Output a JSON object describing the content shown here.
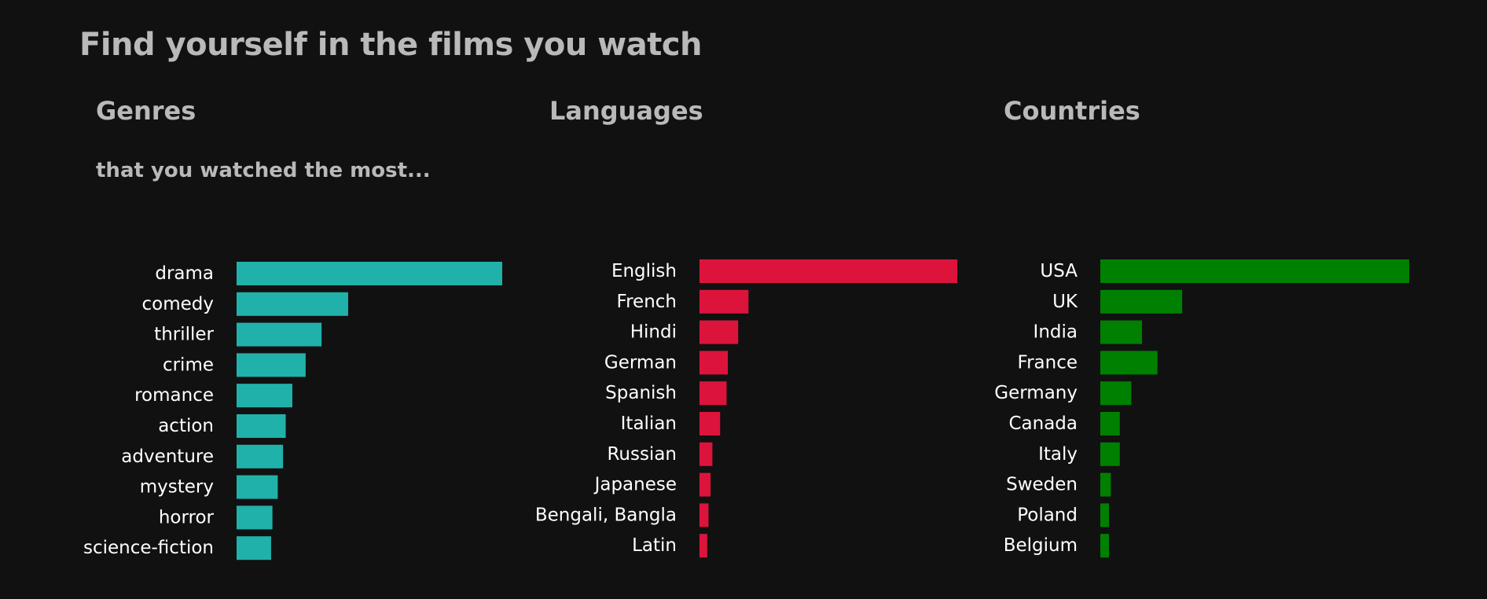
{
  "page": {
    "title": "Find yourself in the films you watch"
  },
  "sections": {
    "genres": {
      "heading": "Genres",
      "subtitle": "that you watched the most..."
    },
    "languages": {
      "heading": "Languages"
    },
    "countries": {
      "heading": "Countries"
    }
  },
  "chart_data": [
    {
      "type": "bar",
      "orientation": "horizontal",
      "categories": [
        "drama",
        "comedy",
        "thriller",
        "crime",
        "romance",
        "action",
        "adventure",
        "mystery",
        "horror",
        "science-fiction"
      ],
      "values": [
        100,
        42,
        32,
        26,
        21,
        18.5,
        17.5,
        15.5,
        13.5,
        13
      ],
      "xlim": [
        0,
        100
      ],
      "color": "#20b2aa",
      "axes": false,
      "grid": false
    },
    {
      "type": "bar",
      "orientation": "horizontal",
      "categories": [
        "English",
        "French",
        "Hindi",
        "German",
        "Spanish",
        "Italian",
        "Russian",
        "Japanese",
        "Bengali, Bangla",
        "Latin"
      ],
      "values": [
        100,
        19,
        15,
        11,
        10.5,
        8,
        5,
        4.3,
        3.5,
        3
      ],
      "xlim": [
        0,
        100
      ],
      "color": "#dc143c",
      "axes": false,
      "grid": false
    },
    {
      "type": "bar",
      "orientation": "horizontal",
      "categories": [
        "USA",
        "UK",
        "India",
        "France",
        "Germany",
        "Canada",
        "Italy",
        "Sweden",
        "Poland",
        "Belgium"
      ],
      "values": [
        100,
        26.5,
        13.5,
        18.5,
        10,
        6.3,
        6.3,
        3.4,
        2.8,
        2.8
      ],
      "xlim": [
        0,
        100
      ],
      "color": "#008000",
      "axes": false,
      "grid": false
    }
  ]
}
